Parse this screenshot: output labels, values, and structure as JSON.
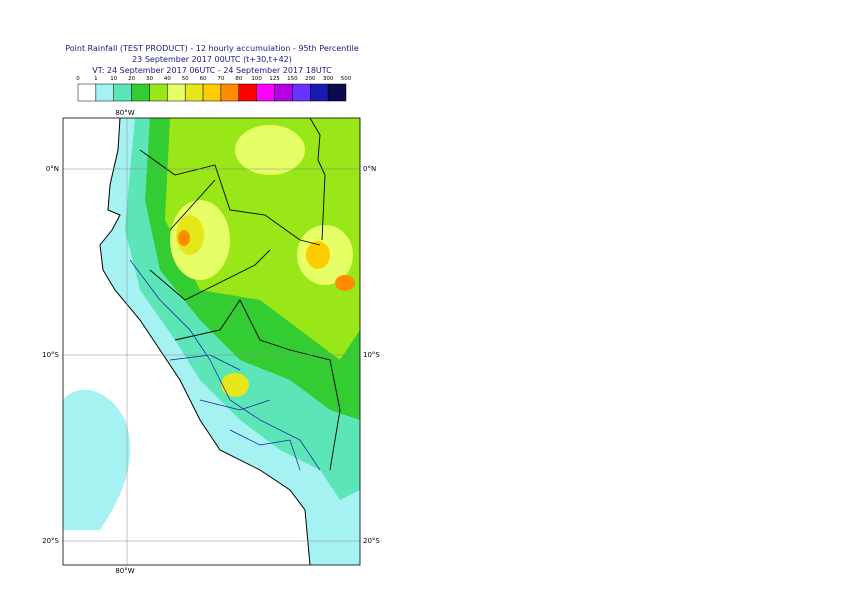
{
  "header": {
    "title": "Point Rainfall (TEST PRODUCT) - 12 hourly accumulation - 95th Percentile",
    "base_time": "23 September 2017 00UTC (t+30,t+42)",
    "valid_time": "VT: 24 September 2017 06UTC - 24 September 2017 18UTC"
  },
  "legend": {
    "labels": [
      0,
      1,
      10,
      20,
      30,
      40,
      50,
      60,
      70,
      80,
      100,
      125,
      150,
      200,
      300,
      500
    ],
    "colors": [
      "#ffffff",
      "#a6f2f2",
      "#5ce6b8",
      "#33cc33",
      "#99e619",
      "#e6ff66",
      "#e6e619",
      "#ffcc00",
      "#ff8c00",
      "#ff0000",
      "#ff00ff",
      "#b300e6",
      "#6633ff",
      "#1a1ab3",
      "#0a0a4d"
    ]
  },
  "map": {
    "lon_labels": [
      "80°W"
    ],
    "lat_labels": [
      "0°N",
      "10°S",
      "20°S"
    ]
  }
}
